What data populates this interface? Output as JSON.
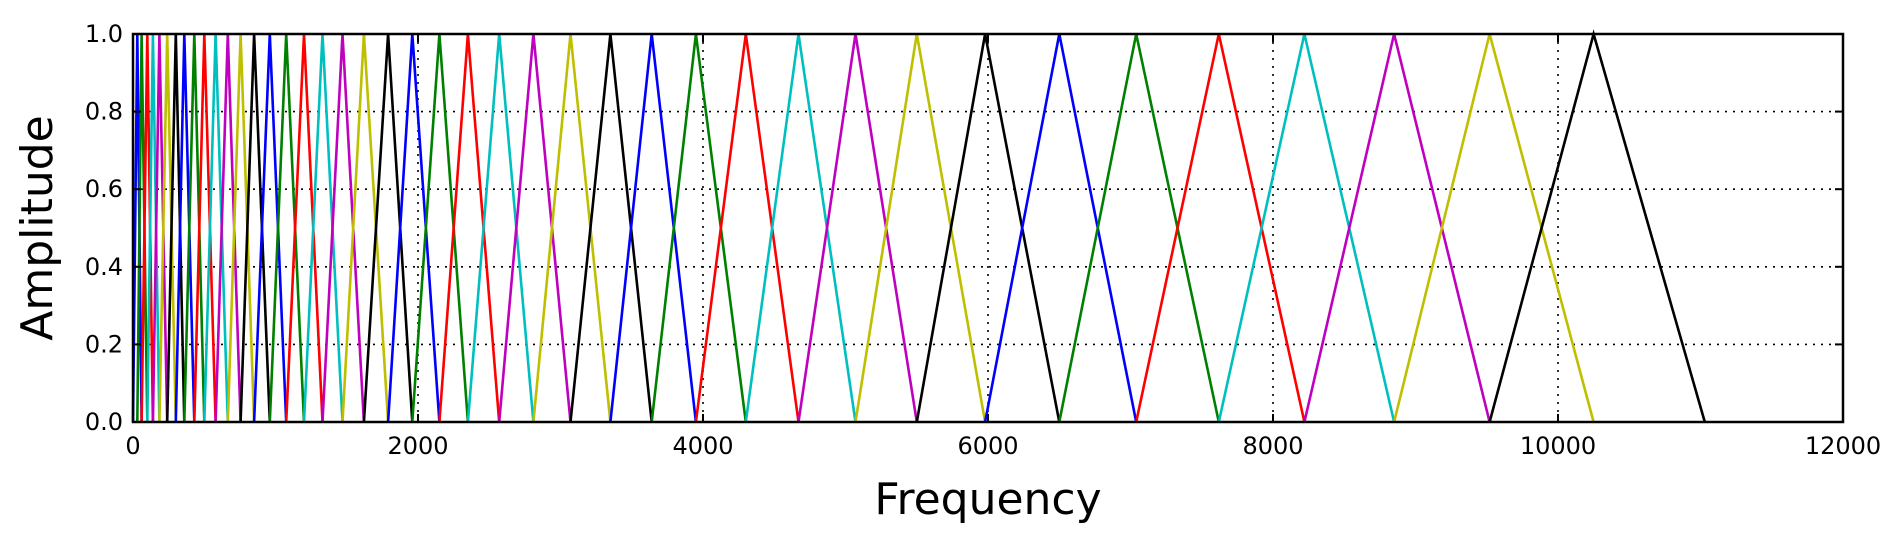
{
  "chart_data": {
    "type": "line",
    "title": "",
    "xlabel": "Frequency",
    "ylabel": "Amplitude",
    "xlim": [
      0,
      12000
    ],
    "ylim": [
      0,
      1
    ],
    "grid": true,
    "legend": "none",
    "x_ticks": [
      0,
      2000,
      4000,
      6000,
      8000,
      10000,
      12000
    ],
    "x_tick_labels": [
      "0",
      "2000",
      "4000",
      "6000",
      "8000",
      "10000",
      "12000"
    ],
    "y_ticks": [
      0,
      0.2,
      0.4,
      0.6,
      0.8,
      1.0
    ],
    "y_tick_labels": [
      "0.0",
      "0.2",
      "0.4",
      "0.6",
      "0.8",
      "1.0"
    ],
    "color_cycle": [
      "#0000ff",
      "#008000",
      "#ff0000",
      "#00bfbf",
      "#bf00bf",
      "#bfbf00",
      "#000000"
    ],
    "filter_bank_edges": [
      0,
      30,
      60,
      100,
      140,
      185,
      240,
      300,
      360,
      430,
      500,
      580,
      665,
      755,
      850,
      960,
      1075,
      1200,
      1330,
      1470,
      1620,
      1790,
      1960,
      2150,
      2350,
      2570,
      2810,
      3070,
      3350,
      3640,
      3950,
      4300,
      4670,
      5070,
      5500,
      5980,
      6500,
      7040,
      7620,
      8220,
      8850,
      9520,
      10250,
      11030
    ]
  }
}
